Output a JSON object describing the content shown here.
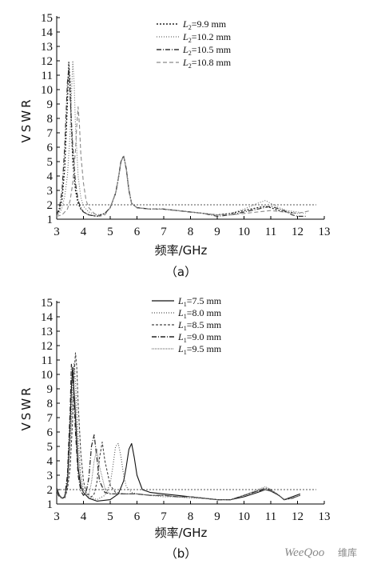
{
  "chart_data": [
    {
      "type": "line",
      "caption": "（a）",
      "xlabel": "频率/GHz",
      "ylabel": "VSWR",
      "xlim": [
        3,
        13
      ],
      "ylim": [
        1,
        15
      ],
      "xticks": [
        3,
        4,
        5,
        6,
        7,
        8,
        9,
        10,
        11,
        12,
        13
      ],
      "yticks": [
        1,
        2,
        3,
        4,
        5,
        6,
        7,
        8,
        9,
        10,
        11,
        12,
        13,
        14,
        15
      ],
      "reference_line": 2,
      "legend_placement": "top-right",
      "series": [
        {
          "name": "L2=9.9 mm",
          "sub": "2",
          "prefix": "L",
          "value": "=9.9 mm",
          "dash": "2,2",
          "color": "#222222",
          "width": 1.3,
          "x": [
            3.0,
            3.1,
            3.2,
            3.3,
            3.4,
            3.45,
            3.5,
            3.55,
            3.6,
            3.7,
            3.8,
            3.9,
            4.0,
            4.2,
            4.5,
            4.8,
            5.0,
            5.2,
            5.3,
            5.4,
            5.5,
            5.6,
            5.7,
            5.8,
            6.0,
            6.5,
            7.0,
            7.5,
            8.0,
            8.5,
            9.0,
            9.5,
            10.0,
            10.5,
            10.8,
            11.0,
            11.3,
            11.6,
            12.0
          ],
          "y": [
            1.3,
            1.6,
            2.4,
            4.5,
            9.0,
            11.9,
            10.5,
            7.5,
            5.0,
            3.0,
            2.1,
            1.7,
            1.5,
            1.3,
            1.2,
            1.4,
            1.8,
            2.8,
            3.8,
            5.0,
            5.4,
            4.5,
            3.0,
            2.1,
            1.8,
            1.7,
            1.7,
            1.6,
            1.5,
            1.4,
            1.3,
            1.4,
            1.6,
            1.8,
            1.9,
            1.8,
            1.6,
            1.5,
            1.4
          ]
        },
        {
          "name": "L2=10.2 mm",
          "sub": "2",
          "prefix": "L",
          "value": "=10.2 mm",
          "dash": "1,2",
          "color": "#6a6a6a",
          "width": 1.1,
          "x": [
            3.0,
            3.1,
            3.2,
            3.3,
            3.4,
            3.5,
            3.55,
            3.6,
            3.65,
            3.7,
            3.8,
            3.9,
            4.0,
            4.2,
            4.5,
            4.8,
            5.0,
            5.2,
            5.3,
            5.4,
            5.5,
            5.6,
            5.7,
            5.8,
            6.0,
            6.5,
            7.0,
            7.5,
            8.0,
            8.5,
            9.0,
            9.5,
            10.0,
            10.5,
            10.8,
            11.0,
            11.3,
            11.6,
            12.0,
            12.3
          ],
          "y": [
            1.2,
            1.4,
            1.8,
            2.6,
            4.0,
            7.0,
            9.5,
            12.0,
            10.5,
            7.5,
            4.0,
            2.5,
            1.9,
            1.5,
            1.3,
            1.4,
            1.8,
            2.8,
            3.8,
            5.0,
            5.4,
            4.5,
            3.0,
            2.1,
            1.8,
            1.7,
            1.7,
            1.6,
            1.5,
            1.4,
            1.3,
            1.4,
            1.7,
            2.1,
            2.3,
            2.1,
            1.8,
            1.6,
            1.5,
            1.4
          ]
        },
        {
          "name": "L2=10.5 mm",
          "sub": "2",
          "prefix": "L",
          "value": "=10.5 mm",
          "dash": "6,2,1,2",
          "color": "#333333",
          "width": 1.2,
          "x": [
            3.0,
            3.1,
            3.2,
            3.3,
            3.4,
            3.45,
            3.5,
            3.6,
            3.7,
            3.8,
            3.9,
            4.0,
            4.2,
            4.5,
            4.8,
            5.0,
            5.2,
            5.3,
            5.4,
            5.5,
            5.6,
            5.7,
            5.8,
            6.0,
            6.5,
            7.0,
            7.5,
            8.0,
            8.5,
            9.0,
            9.5,
            10.0,
            10.5,
            11.0,
            11.5,
            11.8,
            12.0,
            12.3
          ],
          "y": [
            1.3,
            1.8,
            3.0,
            6.0,
            10.5,
            11.5,
            9.5,
            6.0,
            3.5,
            2.3,
            1.8,
            1.5,
            1.3,
            1.2,
            1.4,
            1.8,
            2.8,
            3.8,
            5.0,
            5.4,
            4.5,
            3.0,
            2.1,
            1.8,
            1.7,
            1.7,
            1.6,
            1.5,
            1.4,
            1.2,
            1.3,
            1.5,
            1.7,
            1.9,
            1.6,
            1.3,
            1.2,
            1.2
          ]
        },
        {
          "name": "L2=10.8 mm",
          "sub": "2",
          "prefix": "L",
          "value": "=10.8 mm",
          "dash": "5,3",
          "color": "#8a8a8a",
          "width": 1.1,
          "x": [
            3.0,
            3.2,
            3.4,
            3.5,
            3.6,
            3.7,
            3.75,
            3.8,
            3.85,
            3.9,
            4.0,
            4.1,
            4.2,
            4.4,
            4.6,
            4.8,
            5.0,
            5.2,
            5.3,
            5.4,
            5.5,
            5.6,
            5.7,
            5.8,
            6.0,
            6.5,
            7.0,
            7.5,
            8.0,
            8.5,
            9.0,
            9.5,
            10.0,
            10.5,
            11.0,
            11.5,
            12.0,
            12.5
          ],
          "y": [
            1.2,
            1.3,
            1.7,
            2.3,
            3.5,
            5.8,
            7.5,
            8.8,
            7.5,
            5.5,
            3.5,
            2.3,
            1.8,
            1.4,
            1.2,
            1.3,
            1.8,
            2.8,
            3.8,
            5.0,
            5.4,
            4.5,
            3.0,
            2.1,
            1.8,
            1.7,
            1.7,
            1.6,
            1.5,
            1.4,
            1.3,
            1.3,
            1.4,
            1.5,
            1.6,
            1.5,
            1.4,
            1.6
          ]
        }
      ]
    },
    {
      "type": "line",
      "caption": "（b）",
      "xlabel": "频率/GHz",
      "ylabel": "VSWR",
      "xlim": [
        3,
        13
      ],
      "ylim": [
        1,
        15
      ],
      "xticks": [
        3,
        4,
        5,
        6,
        7,
        8,
        9,
        10,
        11,
        12,
        13
      ],
      "yticks": [
        1,
        2,
        3,
        4,
        5,
        6,
        7,
        8,
        9,
        10,
        11,
        12,
        13,
        14,
        15
      ],
      "reference_line": 2,
      "legend_placement": "top-right",
      "series": [
        {
          "name": "L1=7.5 mm",
          "sub": "1",
          "prefix": "L",
          "value": "=7.5 mm",
          "dash": "",
          "color": "#111111",
          "width": 1.1,
          "x": [
            3.0,
            3.1,
            3.2,
            3.3,
            3.4,
            3.5,
            3.55,
            3.6,
            3.7,
            3.8,
            3.9,
            4.0,
            4.2,
            4.5,
            5.0,
            5.3,
            5.5,
            5.6,
            5.7,
            5.8,
            5.9,
            6.0,
            6.2,
            6.5,
            7.0,
            7.5,
            8.0,
            8.5,
            9.0,
            9.5,
            10.0,
            10.5,
            10.8,
            11.0,
            11.3,
            11.5,
            11.8,
            12.1
          ],
          "y": [
            2.1,
            1.6,
            1.4,
            1.5,
            2.5,
            6.5,
            9.0,
            10.5,
            7.0,
            3.5,
            2.2,
            1.8,
            1.4,
            1.2,
            1.3,
            1.7,
            2.6,
            3.6,
            4.8,
            5.2,
            4.2,
            3.0,
            2.0,
            1.8,
            1.7,
            1.6,
            1.5,
            1.4,
            1.3,
            1.3,
            1.5,
            1.8,
            2.0,
            1.9,
            1.6,
            1.3,
            1.5,
            1.7
          ]
        },
        {
          "name": "L1=8.0 mm",
          "sub": "1",
          "prefix": "L",
          "value": "=8.0 mm",
          "dash": "1,2",
          "color": "#555555",
          "width": 1.1,
          "x": [
            3.0,
            3.1,
            3.2,
            3.3,
            3.4,
            3.5,
            3.6,
            3.65,
            3.7,
            3.8,
            3.9,
            4.0,
            4.2,
            4.5,
            4.8,
            5.0,
            5.1,
            5.2,
            5.3,
            5.4,
            5.5,
            5.6,
            5.8,
            6.0,
            6.5,
            7.0,
            7.5,
            8.0,
            8.5,
            9.0,
            9.5,
            10.0,
            10.5,
            10.8,
            11.0,
            11.3,
            11.5,
            11.8,
            12.1
          ],
          "y": [
            2.0,
            1.6,
            1.4,
            1.5,
            2.4,
            5.5,
            9.5,
            10.8,
            9.5,
            5.5,
            3.0,
            2.0,
            1.5,
            1.3,
            1.6,
            2.4,
            3.6,
            5.0,
            5.2,
            4.3,
            3.0,
            2.2,
            1.8,
            1.7,
            1.6,
            1.5,
            1.5,
            1.4,
            1.4,
            1.3,
            1.3,
            1.6,
            1.9,
            2.1,
            2.0,
            1.6,
            1.3,
            1.4,
            1.6
          ]
        },
        {
          "name": "L1=8.5 mm",
          "sub": "1",
          "prefix": "L",
          "value": "=8.5 mm",
          "dash": "3,2",
          "color": "#444444",
          "width": 1.1,
          "x": [
            3.0,
            3.1,
            3.2,
            3.3,
            3.4,
            3.5,
            3.6,
            3.65,
            3.7,
            3.75,
            3.8,
            3.9,
            4.0,
            4.1,
            4.3,
            4.4,
            4.5,
            4.6,
            4.7,
            4.8,
            5.0,
            5.2,
            5.5,
            6.0,
            6.5,
            7.0,
            7.5,
            8.0,
            8.5,
            9.0,
            9.5,
            10.0,
            10.5,
            10.8,
            11.0,
            11.3,
            11.5,
            11.8,
            12.1
          ],
          "y": [
            1.9,
            1.6,
            1.4,
            1.4,
            2.0,
            3.5,
            7.0,
            10.0,
            11.5,
            10.5,
            8.0,
            4.5,
            2.6,
            1.8,
            1.5,
            1.7,
            2.5,
            4.2,
            5.3,
            4.0,
            2.3,
            1.8,
            1.7,
            1.7,
            1.6,
            1.6,
            1.5,
            1.5,
            1.4,
            1.3,
            1.3,
            1.6,
            1.9,
            2.0,
            1.9,
            1.6,
            1.3,
            1.4,
            1.6
          ]
        },
        {
          "name": "L1=9.0 mm",
          "sub": "1",
          "prefix": "L",
          "value": "=9.0 mm",
          "dash": "6,2,1,2",
          "color": "#222222",
          "width": 1.2,
          "x": [
            3.0,
            3.1,
            3.2,
            3.3,
            3.4,
            3.5,
            3.55,
            3.6,
            3.7,
            3.8,
            3.9,
            4.0,
            4.1,
            4.2,
            4.3,
            4.4,
            4.5,
            4.6,
            4.8,
            5.0,
            5.5,
            6.0,
            6.5,
            7.0,
            7.5,
            8.0,
            8.5,
            9.0,
            9.5,
            10.0,
            10.5,
            10.8,
            11.0,
            11.3,
            11.5,
            11.8,
            12.1
          ],
          "y": [
            1.8,
            1.5,
            1.4,
            1.5,
            3.0,
            7.5,
            10.7,
            10.0,
            6.0,
            3.0,
            1.9,
            1.6,
            1.8,
            2.8,
            5.0,
            5.8,
            4.2,
            2.6,
            1.8,
            1.7,
            1.7,
            1.7,
            1.6,
            1.6,
            1.5,
            1.5,
            1.4,
            1.3,
            1.3,
            1.6,
            1.9,
            2.1,
            2.0,
            1.6,
            1.3,
            1.4,
            1.6
          ]
        },
        {
          "name": "L1=9.5 mm",
          "sub": "1",
          "prefix": "L",
          "value": "=9.5 mm",
          "dash": "1,1",
          "color": "#777777",
          "width": 1.0,
          "x": [
            3.0,
            3.1,
            3.2,
            3.3,
            3.4,
            3.5,
            3.6,
            3.65,
            3.7,
            3.8,
            3.9,
            4.0,
            4.2,
            4.3,
            4.4,
            4.5,
            4.6,
            4.8,
            5.0,
            5.5,
            6.0,
            6.5,
            7.0,
            7.5,
            8.0,
            8.5,
            9.0,
            9.5,
            10.0,
            10.5,
            10.8,
            11.0,
            11.3,
            11.5,
            11.8,
            12.1
          ],
          "y": [
            1.7,
            1.5,
            1.4,
            1.4,
            2.2,
            4.5,
            8.5,
            9.0,
            8.0,
            4.5,
            2.6,
            1.8,
            1.6,
            2.5,
            4.0,
            4.8,
            3.6,
            2.1,
            1.7,
            1.7,
            1.7,
            1.6,
            1.6,
            1.5,
            1.5,
            1.4,
            1.3,
            1.3,
            1.6,
            2.0,
            2.2,
            2.0,
            1.6,
            1.3,
            1.4,
            1.6
          ]
        }
      ]
    }
  ],
  "watermark": {
    "brand": "WeeQoo",
    "cn": "维库"
  }
}
